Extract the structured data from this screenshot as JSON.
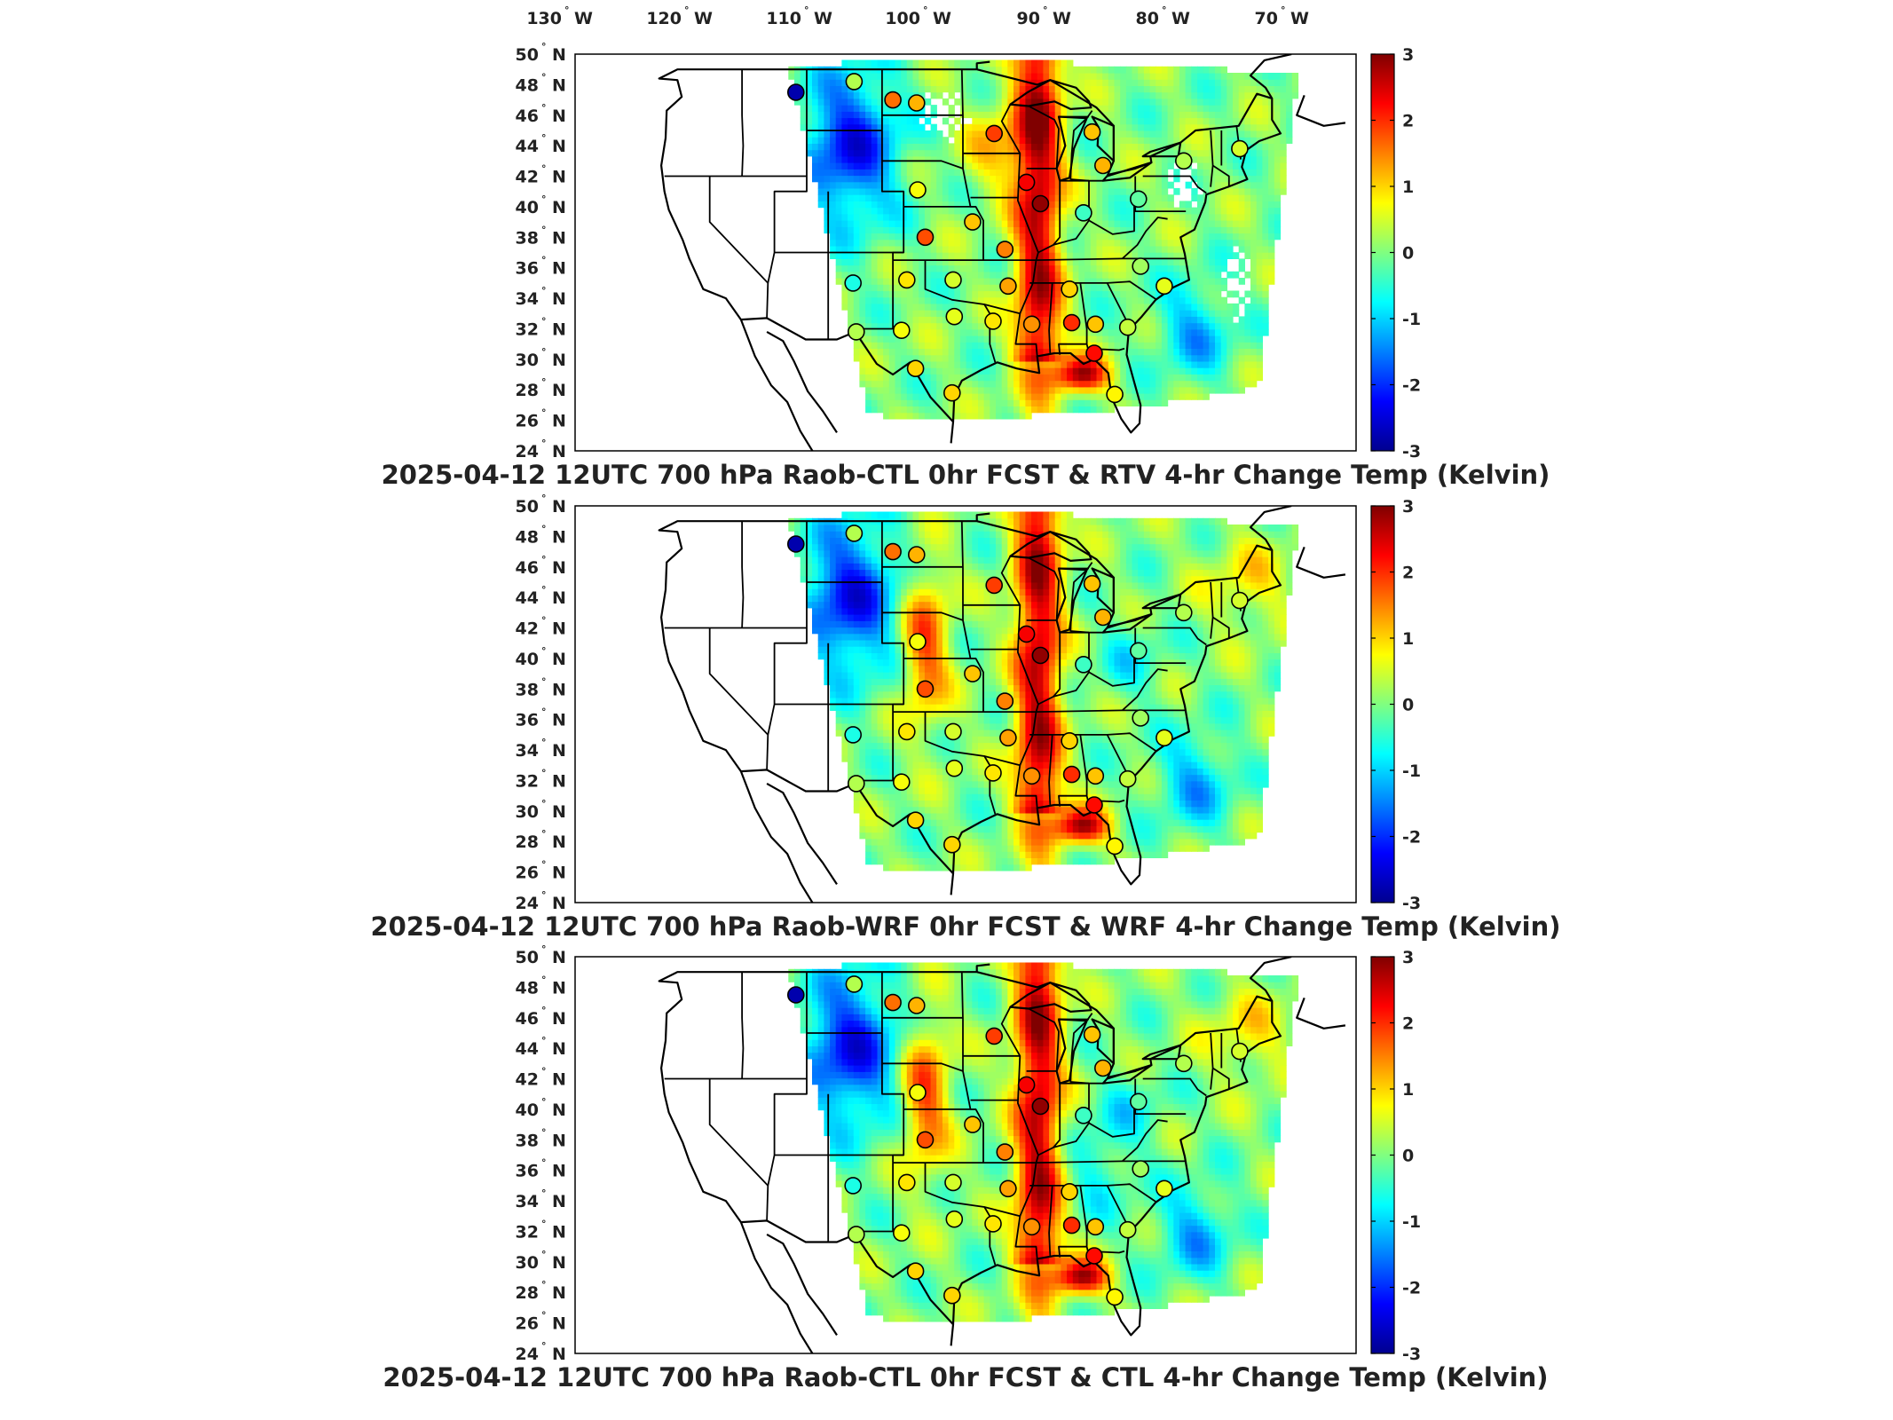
{
  "figure": {
    "longitude_labels": [
      {
        "deg": "130",
        "hemi": "W"
      },
      {
        "deg": "120",
        "hemi": "W"
      },
      {
        "deg": "110",
        "hemi": "W"
      },
      {
        "deg": "100",
        "hemi": "W"
      },
      {
        "deg": "90",
        "hemi": "W"
      },
      {
        "deg": "80",
        "hemi": "W"
      },
      {
        "deg": "70",
        "hemi": "W"
      }
    ],
    "latitude_labels": [
      {
        "deg": "50",
        "hemi": "N"
      },
      {
        "deg": "48",
        "hemi": "N"
      },
      {
        "deg": "46",
        "hemi": "N"
      },
      {
        "deg": "44",
        "hemi": "N"
      },
      {
        "deg": "42",
        "hemi": "N"
      },
      {
        "deg": "40",
        "hemi": "N"
      },
      {
        "deg": "38",
        "hemi": "N"
      },
      {
        "deg": "36",
        "hemi": "N"
      },
      {
        "deg": "34",
        "hemi": "N"
      },
      {
        "deg": "32",
        "hemi": "N"
      },
      {
        "deg": "30",
        "hemi": "N"
      },
      {
        "deg": "28",
        "hemi": "N"
      },
      {
        "deg": "26",
        "hemi": "N"
      },
      {
        "deg": "24",
        "hemi": "N"
      }
    ],
    "colorbar": {
      "ticks": [
        "3",
        "2",
        "1",
        "0",
        "-1",
        "-2",
        "-3"
      ],
      "min": -3,
      "max": 3,
      "colors": [
        "#00008f",
        "#0000ff",
        "#0080ff",
        "#00ffff",
        "#80ff80",
        "#ffff00",
        "#ff8000",
        "#ff0000",
        "#800000"
      ]
    },
    "panels": [
      {
        "title": "2025-04-12 12UTC 700 hPa Raob-CTL 0hr FCST & RTV 4-hr Change Temp (Kelvin)",
        "variant": "rtv"
      },
      {
        "title": "2025-04-12 12UTC 700 hPa Raob-WRF 0hr FCST & WRF 4-hr Change Temp (Kelvin)",
        "variant": "wrf"
      },
      {
        "title": "2025-04-12 12UTC 700 hPa Raob-CTL 0hr FCST & CTL 4-hr Change Temp (Kelvin)",
        "variant": "ctl"
      }
    ],
    "stations": [
      {
        "lon": -112.0,
        "lat": 47.5,
        "v": -2.8
      },
      {
        "lon": -106.6,
        "lat": 48.2,
        "v": 0.3
      },
      {
        "lon": -100.8,
        "lat": 46.8,
        "v": 1.2
      },
      {
        "lon": -103.0,
        "lat": 47.0,
        "v": 1.6
      },
      {
        "lon": -93.6,
        "lat": 44.8,
        "v": 1.9
      },
      {
        "lon": -84.5,
        "lat": 44.9,
        "v": 1.1
      },
      {
        "lon": -83.5,
        "lat": 42.7,
        "v": 1.2
      },
      {
        "lon": -76.0,
        "lat": 43.0,
        "v": 0.3
      },
      {
        "lon": -70.8,
        "lat": 43.8,
        "v": 0.5
      },
      {
        "lon": -100.7,
        "lat": 41.1,
        "v": 0.7
      },
      {
        "lon": -90.6,
        "lat": 41.6,
        "v": 2.3
      },
      {
        "lon": -89.3,
        "lat": 40.2,
        "v": 2.9
      },
      {
        "lon": -85.3,
        "lat": 39.6,
        "v": -0.4
      },
      {
        "lon": -80.2,
        "lat": 40.5,
        "v": -0.2
      },
      {
        "lon": -100.0,
        "lat": 38.0,
        "v": 1.8
      },
      {
        "lon": -95.6,
        "lat": 39.0,
        "v": 1.1
      },
      {
        "lon": -92.6,
        "lat": 37.2,
        "v": 1.5
      },
      {
        "lon": -106.7,
        "lat": 35.0,
        "v": -0.6
      },
      {
        "lon": -101.7,
        "lat": 35.2,
        "v": 0.9
      },
      {
        "lon": -97.4,
        "lat": 35.2,
        "v": 0.5
      },
      {
        "lon": -92.3,
        "lat": 34.8,
        "v": 1.3
      },
      {
        "lon": -86.6,
        "lat": 34.6,
        "v": 1.0
      },
      {
        "lon": -80.0,
        "lat": 36.1,
        "v": 0.2
      },
      {
        "lon": -77.8,
        "lat": 34.8,
        "v": 0.6
      },
      {
        "lon": -106.4,
        "lat": 31.8,
        "v": 0.3
      },
      {
        "lon": -102.2,
        "lat": 31.9,
        "v": 0.7
      },
      {
        "lon": -97.3,
        "lat": 32.8,
        "v": 0.6
      },
      {
        "lon": -93.7,
        "lat": 32.5,
        "v": 0.9
      },
      {
        "lon": -90.1,
        "lat": 32.3,
        "v": 1.4
      },
      {
        "lon": -86.4,
        "lat": 32.4,
        "v": 2.0
      },
      {
        "lon": -84.2,
        "lat": 32.3,
        "v": 1.1
      },
      {
        "lon": -81.2,
        "lat": 32.1,
        "v": 0.4
      },
      {
        "lon": -100.9,
        "lat": 29.4,
        "v": 1.0
      },
      {
        "lon": -97.5,
        "lat": 27.8,
        "v": 1.0
      },
      {
        "lon": -82.4,
        "lat": 27.7,
        "v": 0.8
      },
      {
        "lon": -84.3,
        "lat": 30.4,
        "v": 2.2
      }
    ]
  }
}
